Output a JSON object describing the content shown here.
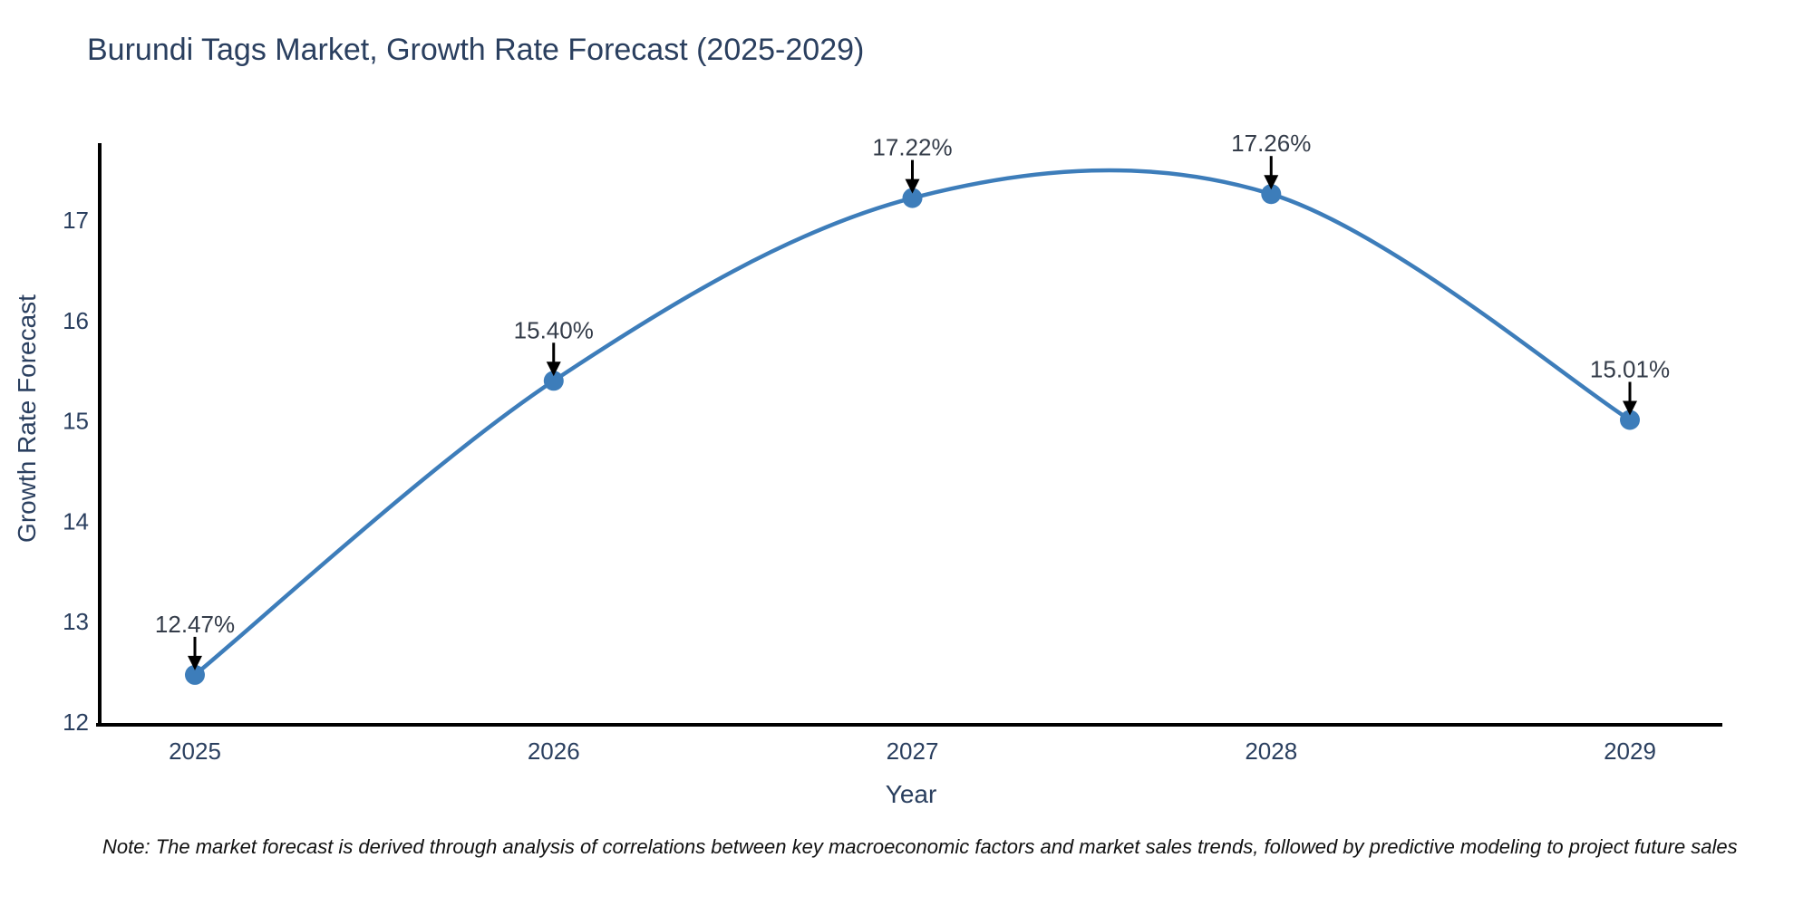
{
  "chart_data": {
    "type": "line",
    "title": "Burundi Tags Market, Growth Rate Forecast (2025-2029)",
    "xlabel": "Year",
    "ylabel": "Growth Rate Forecast",
    "x": [
      2025,
      2026,
      2027,
      2028,
      2029
    ],
    "values": [
      12.47,
      15.4,
      17.22,
      17.26,
      15.01
    ],
    "point_labels": [
      "12.47%",
      "15.40%",
      "17.22%",
      "17.26%",
      "15.01%"
    ],
    "xtick_labels": [
      "2025",
      "2026",
      "2027",
      "2028",
      "2029"
    ],
    "ytick_values": [
      12,
      13,
      14,
      15,
      16,
      17
    ],
    "ylim": [
      11.97,
      17.78
    ],
    "line_shape": "spline",
    "grid": false,
    "legend": false,
    "line_color": "#3d7dba",
    "marker_color": "#3d7dba",
    "axis_color": "#000000",
    "title_color": "#2a3f5f",
    "tick_color": "#2a3f5f",
    "annotation_color": "#343c49",
    "arrow_color": "#000000",
    "note": "Note: The market forecast is derived through analysis of correlations between key macroeconomic factors and market sales trends, followed by predictive modeling to project future sales"
  }
}
